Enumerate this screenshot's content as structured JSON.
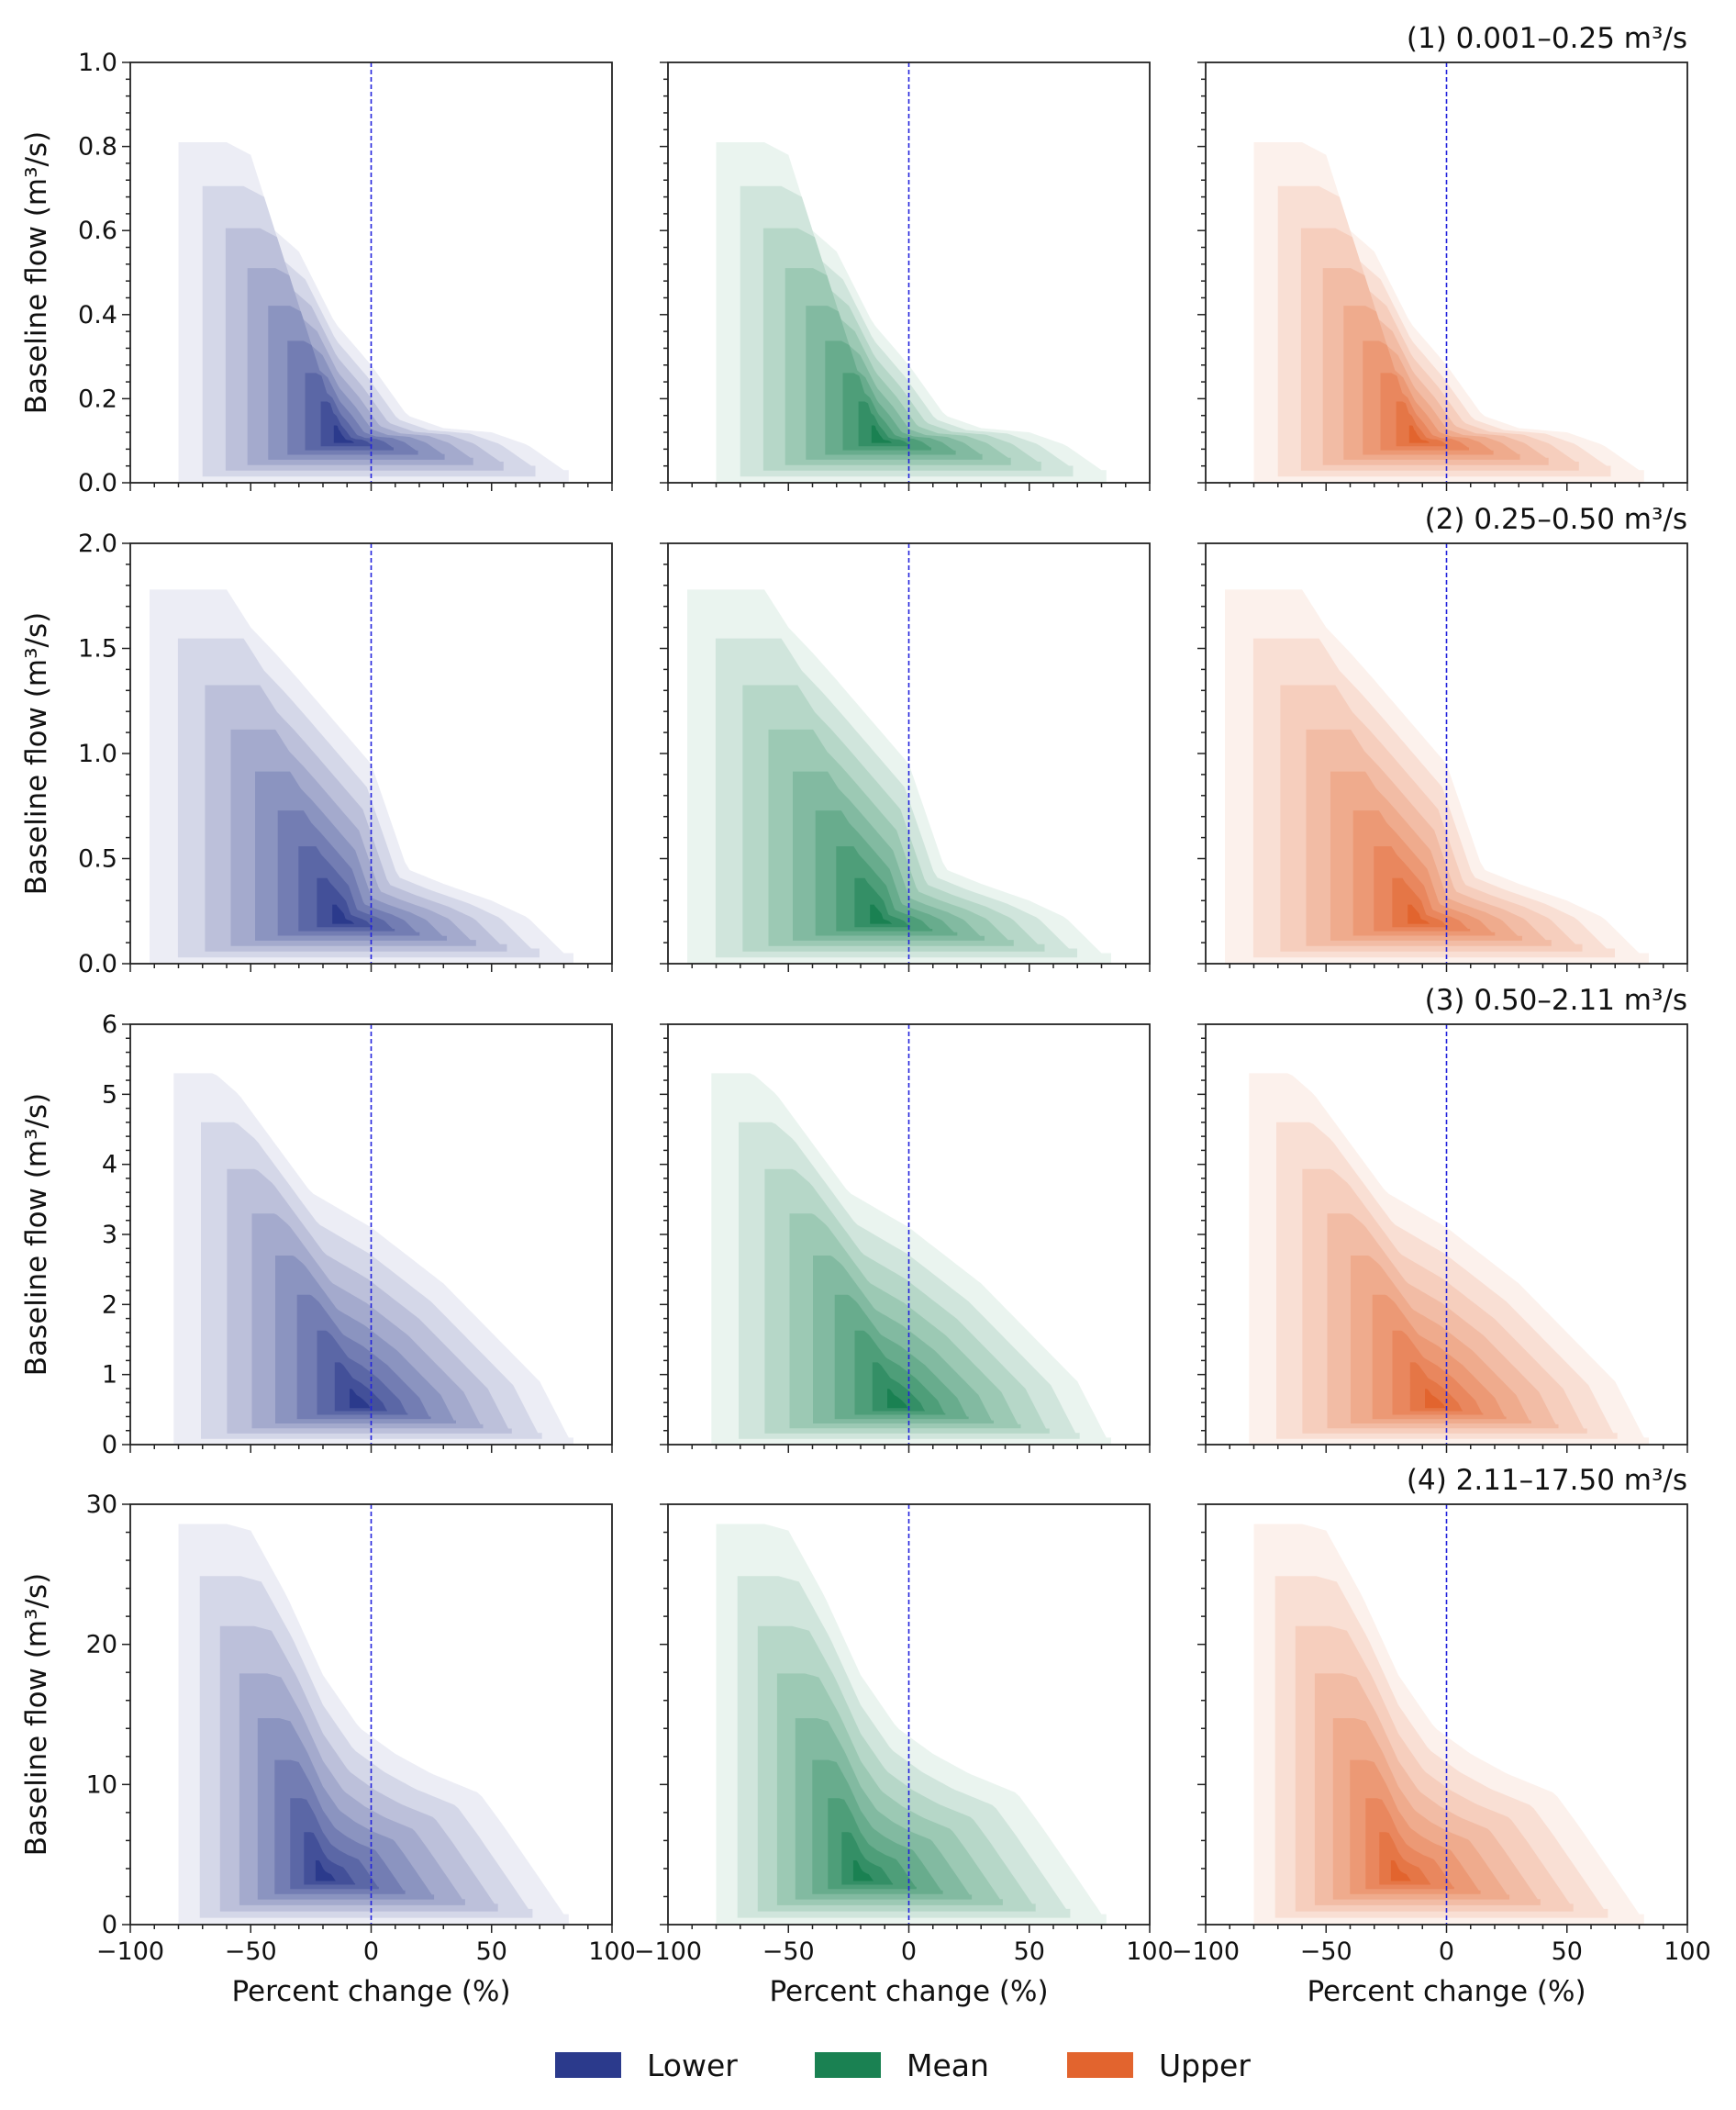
{
  "chart_data": {
    "type": "kde-contour",
    "x_label": "Percent change (%)",
    "y_label": "Baseline flow (m³/s)",
    "x_range": [
      -100,
      100
    ],
    "x_ticks": [
      "−100",
      "−50",
      "0",
      "50",
      "100"
    ],
    "reference_line_x": 0,
    "reference_line_color": "#2222dd",
    "grid": false,
    "legend_position": "bottom-center",
    "series": [
      {
        "name": "Lower",
        "color": "#2b3a8c"
      },
      {
        "name": "Mean",
        "color": "#1a8152"
      },
      {
        "name": "Upper",
        "color": "#e2642e"
      }
    ],
    "rows": [
      {
        "title": "(1) 0.001–0.25 m³/s",
        "y_range": [
          0,
          1.0
        ],
        "y_ticks": [
          "0.0",
          "0.2",
          "0.4",
          "0.6",
          "0.8",
          "1.0"
        ],
        "outer_upper_bound": [
          [
            -60,
            0.81
          ],
          [
            -50,
            0.78
          ],
          [
            -40,
            0.6
          ],
          [
            -30,
            0.55
          ],
          [
            -15,
            0.38
          ],
          [
            0,
            0.28
          ],
          [
            15,
            0.16
          ],
          [
            30,
            0.13
          ],
          [
            50,
            0.12
          ],
          [
            65,
            0.09
          ],
          [
            80,
            0.03
          ]
        ],
        "outer_left_x": -80,
        "outer_right_x": 82,
        "density_peak": {
          "x": -12,
          "y": 0.1
        }
      },
      {
        "title": "(2) 0.25–0.50 m³/s",
        "y_range": [
          0,
          2.0
        ],
        "y_ticks": [
          "0.0",
          "0.5",
          "1.0",
          "1.5",
          "2.0"
        ],
        "outer_upper_bound": [
          [
            -60,
            1.78
          ],
          [
            -50,
            1.6
          ],
          [
            -40,
            1.48
          ],
          [
            -30,
            1.35
          ],
          [
            -15,
            1.15
          ],
          [
            0,
            0.95
          ],
          [
            15,
            0.45
          ],
          [
            30,
            0.38
          ],
          [
            50,
            0.3
          ],
          [
            65,
            0.22
          ],
          [
            80,
            0.05
          ]
        ],
        "outer_left_x": -92,
        "outer_right_x": 84,
        "density_peak": {
          "x": -12,
          "y": 0.2
        }
      },
      {
        "title": "(3) 0.50–2.11 m³/s",
        "y_range": [
          0,
          6
        ],
        "y_ticks": [
          "0",
          "1",
          "2",
          "3",
          "4",
          "5",
          "6"
        ],
        "outer_upper_bound": [
          [
            -65,
            5.3
          ],
          [
            -55,
            5.0
          ],
          [
            -40,
            4.3
          ],
          [
            -25,
            3.6
          ],
          [
            -10,
            3.3
          ],
          [
            0,
            3.1
          ],
          [
            15,
            2.7
          ],
          [
            30,
            2.3
          ],
          [
            50,
            1.6
          ],
          [
            70,
            0.9
          ],
          [
            82,
            0.1
          ]
        ],
        "outer_left_x": -82,
        "outer_right_x": 84,
        "density_peak": {
          "x": -5,
          "y": 0.55
        }
      },
      {
        "title": "(4) 2.11–17.50 m³/s",
        "y_range": [
          0,
          32
        ],
        "y_ticks": [
          "0",
          "10",
          "20",
          "30"
        ],
        "outer_upper_bound": [
          [
            -60,
            30.5
          ],
          [
            -50,
            30.0
          ],
          [
            -35,
            25.0
          ],
          [
            -20,
            19.0
          ],
          [
            -5,
            15.0
          ],
          [
            10,
            13.0
          ],
          [
            25,
            11.5
          ],
          [
            45,
            10.0
          ],
          [
            55,
            7.5
          ],
          [
            70,
            3.5
          ],
          [
            80,
            0.8
          ]
        ],
        "outer_left_x": -80,
        "outer_right_x": 82,
        "density_peak": {
          "x": -20,
          "y": 3.5
        }
      }
    ]
  }
}
